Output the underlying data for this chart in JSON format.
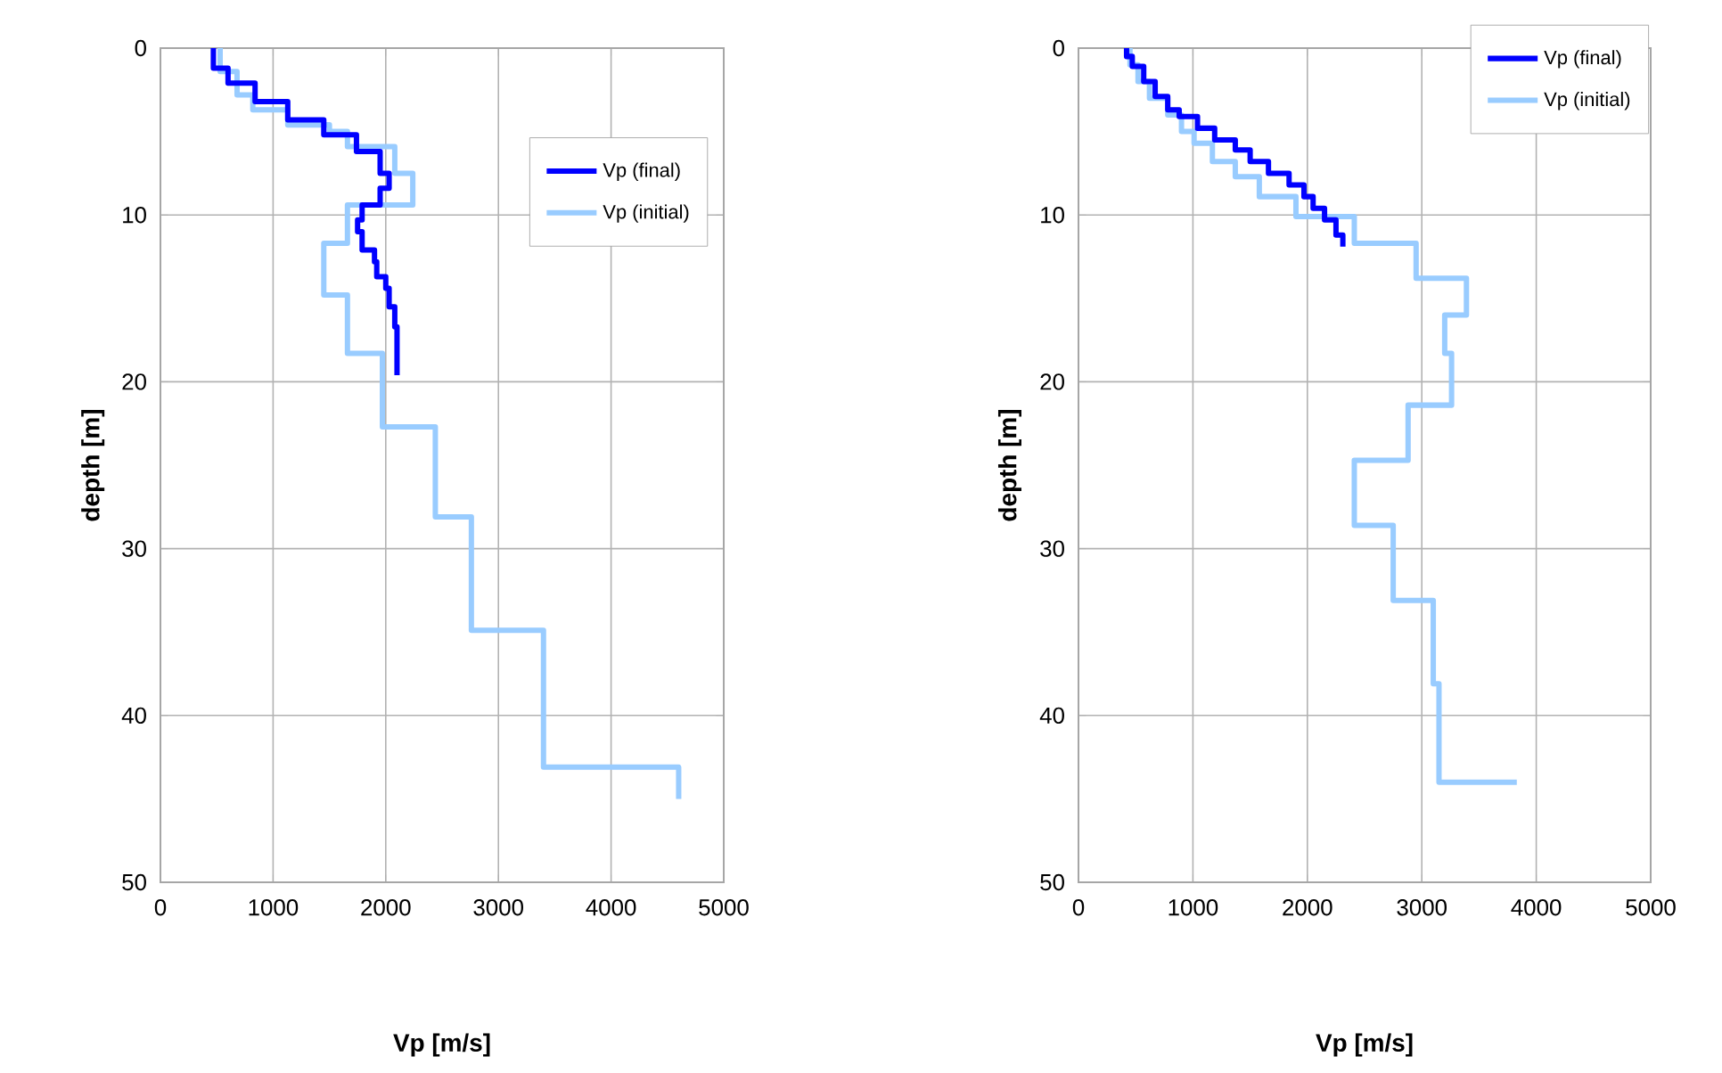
{
  "chart_data": [
    {
      "type": "line",
      "xlabel": "Vp [m/s]",
      "ylabel": "depth [m]",
      "xlim": [
        0,
        5000
      ],
      "xticks": [
        0,
        1000,
        2000,
        3000,
        4000,
        5000
      ],
      "ylim": [
        50,
        0
      ],
      "yticks": [
        0,
        10,
        20,
        30,
        40,
        50
      ],
      "grid": true,
      "legend": "top right",
      "marker": "none",
      "series": [
        {
          "name": "Vp (final)",
          "color": "#0000ff",
          "x": [
            470,
            470,
            600,
            600,
            840,
            840,
            1130,
            1130,
            1450,
            1450,
            1740,
            1740,
            1950,
            1950,
            2030,
            2030,
            1950,
            1950,
            1790,
            1790,
            1750,
            1750,
            1790,
            1790,
            1900,
            1900,
            1920,
            1920,
            2000,
            2000,
            2030,
            2030,
            2080,
            2080,
            2100,
            2100
          ],
          "values": [
            0,
            1.2,
            1.2,
            2.1,
            2.1,
            3.2,
            3.2,
            4.3,
            4.3,
            5.2,
            5.2,
            6.2,
            6.2,
            7.5,
            7.5,
            8.4,
            8.4,
            9.4,
            9.4,
            10.3,
            10.3,
            11.0,
            11.0,
            12.1,
            12.1,
            12.8,
            12.8,
            13.7,
            13.7,
            14.4,
            14.4,
            15.5,
            15.5,
            16.7,
            16.7,
            19.6
          ]
        },
        {
          "name": "Vp (initial)",
          "color": "#99ccff",
          "x": [
            530,
            530,
            680,
            680,
            820,
            820,
            1130,
            1130,
            1500,
            1500,
            1660,
            1660,
            2080,
            2080,
            2240,
            2240,
            1660,
            1660,
            1450,
            1450,
            1660,
            1660,
            1970,
            1970,
            2440,
            2440,
            2760,
            2760,
            3400,
            3400,
            4600,
            4600
          ],
          "values": [
            0,
            1.4,
            1.4,
            2.8,
            2.8,
            3.7,
            3.7,
            4.6,
            4.6,
            5.0,
            5.0,
            5.9,
            5.9,
            7.5,
            7.5,
            9.4,
            9.4,
            11.7,
            11.7,
            14.8,
            14.8,
            18.3,
            18.3,
            22.7,
            22.7,
            28.1,
            28.1,
            34.9,
            34.9,
            43.1,
            43.1,
            45.0
          ]
        }
      ]
    },
    {
      "type": "line",
      "xlabel": "Vp [m/s]",
      "ylabel": "depth [m]",
      "xlim": [
        0,
        5000
      ],
      "xticks": [
        0,
        1000,
        2000,
        3000,
        4000,
        5000
      ],
      "ylim": [
        50,
        0
      ],
      "yticks": [
        0,
        10,
        20,
        30,
        40,
        50
      ],
      "grid": true,
      "legend": "top right",
      "marker": "none",
      "series": [
        {
          "name": "Vp (final)",
          "color": "#0000ff",
          "x": [
            420,
            420,
            470,
            470,
            570,
            570,
            670,
            670,
            780,
            780,
            880,
            880,
            1040,
            1040,
            1190,
            1190,
            1370,
            1370,
            1500,
            1500,
            1660,
            1660,
            1840,
            1840,
            1970,
            1970,
            2050,
            2050,
            2150,
            2150,
            2250,
            2250,
            2310,
            2310
          ],
          "values": [
            0,
            0.5,
            0.5,
            1.1,
            1.1,
            2.0,
            2.0,
            2.9,
            2.9,
            3.7,
            3.7,
            4.1,
            4.1,
            4.8,
            4.8,
            5.5,
            5.5,
            6.1,
            6.1,
            6.8,
            6.8,
            7.5,
            7.5,
            8.2,
            8.2,
            8.9,
            8.9,
            9.6,
            9.6,
            10.3,
            10.3,
            11.2,
            11.2,
            11.9
          ]
        },
        {
          "name": "Vp (initial)",
          "color": "#99ccff",
          "x": [
            450,
            450,
            520,
            520,
            620,
            620,
            780,
            780,
            900,
            900,
            1010,
            1010,
            1170,
            1170,
            1370,
            1370,
            1580,
            1580,
            1900,
            1900,
            2410,
            2410,
            2950,
            2950,
            3390,
            3390,
            3200,
            3200,
            3260,
            3260,
            2880,
            2880,
            2410,
            2410,
            2750,
            2750,
            3100,
            3100,
            3150,
            3150,
            3830
          ],
          "values": [
            0,
            1.0,
            1.0,
            2.0,
            2.0,
            3.0,
            3.0,
            4.0,
            4.0,
            5.0,
            5.0,
            5.7,
            5.7,
            6.8,
            6.8,
            7.7,
            7.7,
            8.9,
            8.9,
            10.1,
            10.1,
            11.7,
            11.7,
            13.8,
            13.8,
            16.0,
            16.0,
            18.3,
            18.3,
            21.4,
            21.4,
            24.7,
            24.7,
            28.6,
            28.6,
            33.1,
            33.1,
            38.1,
            38.1,
            44.0,
            44.0
          ]
        }
      ]
    }
  ]
}
